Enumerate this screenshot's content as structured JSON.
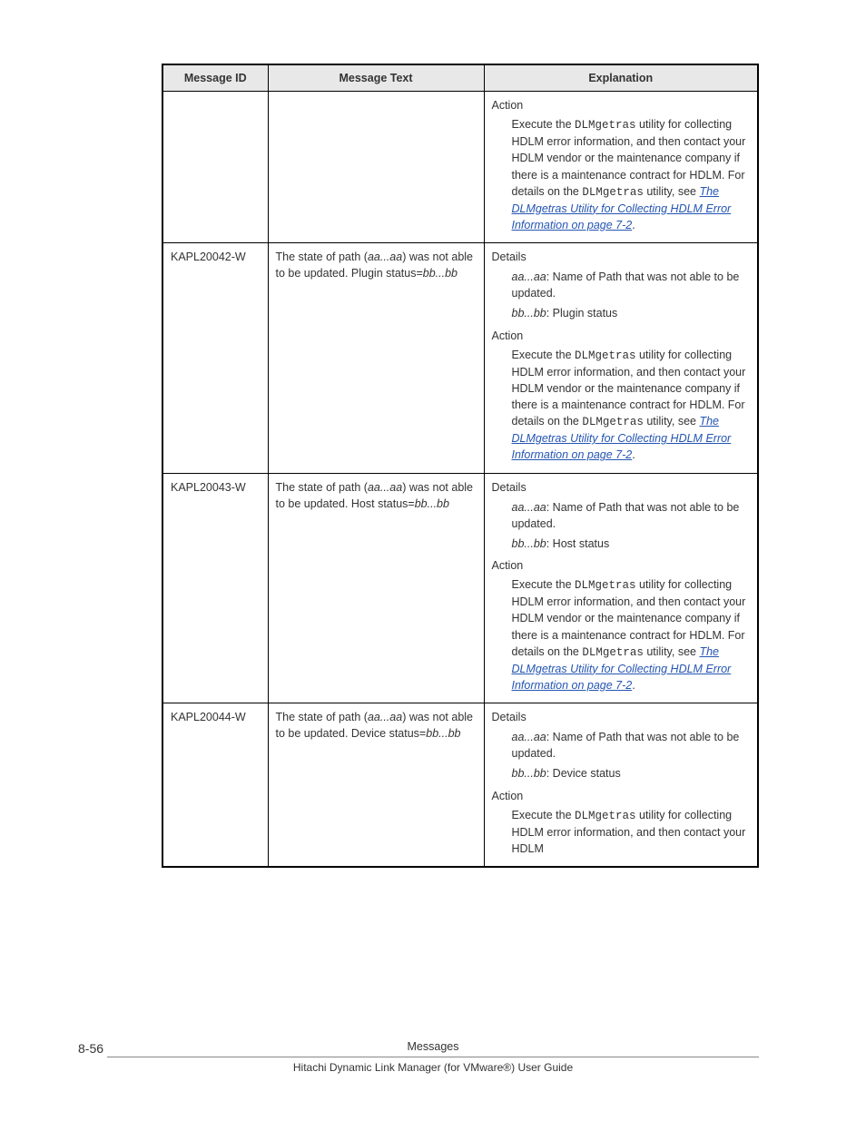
{
  "headers": {
    "id": "Message ID",
    "text": "Message Text",
    "exp": "Explanation"
  },
  "labels": {
    "details": "Details",
    "action": "Action"
  },
  "link_text": "The DLMgetras Utility for Collecting HDLM Error Information on page 7-2",
  "action_pre": "Execute the ",
  "action_util": "DLMgetras",
  "action_mid": " utility for collecting HDLM error information, and then contact your HDLM vendor or the maintenance company if there is a maintenance contract for HDLM. For details on the ",
  "action_util2": "DLMgetras",
  "action_post": " utility, see ",
  "action_period": ".",
  "action_short_pre": "Execute the ",
  "action_short_util": "DLMgetras",
  "action_short_post": " utility for collecting HDLM error information, and then contact your HDLM",
  "rows": [
    {
      "id": "",
      "text": "",
      "has_details": false,
      "has_action_full": true
    },
    {
      "id": "KAPL20042-W",
      "text_pre": "The state of path (",
      "text_var1": "aa...aa",
      "text_mid": ") was not able to be updated. Plugin status=",
      "text_var2": "bb...bb",
      "det1_var": "aa...aa",
      "det1_txt": ": Name of Path that was not able to be updated.",
      "det2_var": "bb...bb",
      "det2_txt": ": Plugin status",
      "has_details": true,
      "has_action_full": true
    },
    {
      "id": "KAPL20043-W",
      "text_pre": "The state of path (",
      "text_var1": "aa...aa",
      "text_mid": ") was not able to be updated. Host status=",
      "text_var2": "bb...bb",
      "det1_var": "aa...aa",
      "det1_txt": ": Name of Path that was not able to be updated.",
      "det2_var": "bb...bb",
      "det2_txt": ": Host status",
      "has_details": true,
      "has_action_full": true
    },
    {
      "id": "KAPL20044-W",
      "text_pre": "The state of path (",
      "text_var1": "aa...aa",
      "text_mid": ") was not able to be updated. Device status=",
      "text_var2": "bb...bb",
      "det1_var": "aa...aa",
      "det1_txt": ": Name of Path that was not able to be updated.",
      "det2_var": "bb...bb",
      "det2_txt": ": Device status",
      "has_details": true,
      "has_action_full": false
    }
  ],
  "footer": {
    "page": "8-56",
    "title": "Messages",
    "sub": "Hitachi Dynamic Link Manager (for VMware®) User Guide"
  }
}
